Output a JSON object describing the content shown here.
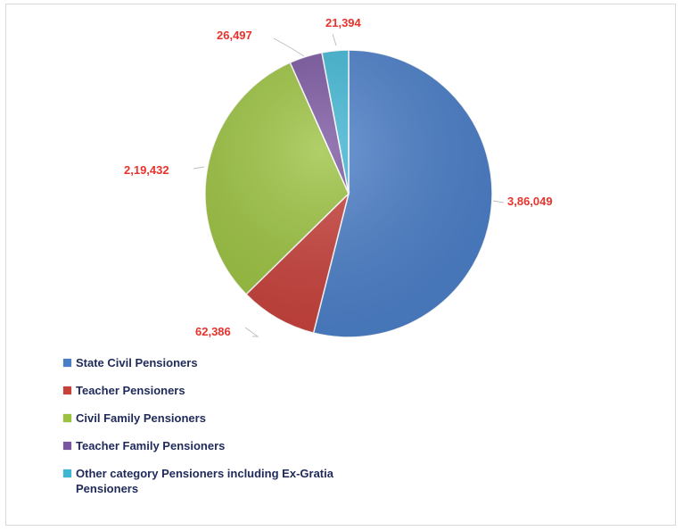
{
  "chart_data": {
    "type": "pie",
    "title": "",
    "legend_position": "bottom-left",
    "slices": [
      {
        "label": "State Civil Pensioners",
        "value": 386049,
        "display": "3,86,049",
        "color": "#4a7ec8"
      },
      {
        "label": "Teacher Pensioners",
        "value": 62386,
        "display": "62,386",
        "color": "#c8403a"
      },
      {
        "label": "Civil Family Pensioners",
        "value": 219432,
        "display": "2,19,432",
        "color": "#9bc23f"
      },
      {
        "label": "Teacher Family Pensioners",
        "value": 26497,
        "display": "26,497",
        "color": "#7a55a0"
      },
      {
        "label": "Other category Pensioners including Ex-Gratia Pensioners",
        "value": 21394,
        "display": "21,394",
        "color": "#3fb6d4"
      }
    ]
  }
}
